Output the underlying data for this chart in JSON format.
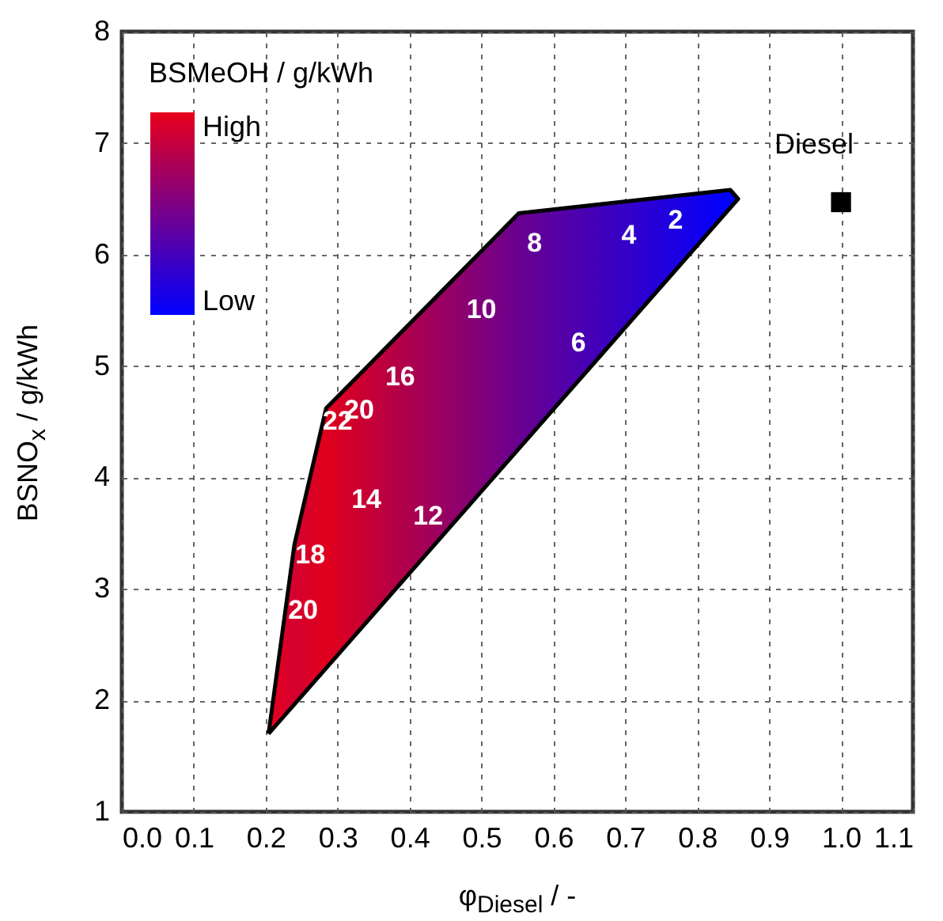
{
  "chart_data": {
    "type": "scatter",
    "xlabel": "φ$_{Diesel}$ / -",
    "ylabel": "BSNO$_{x}$ / g/kWh",
    "clabel": "BSMeOH / g/kWh",
    "xlim": [
      0,
      1.1
    ],
    "ylim": [
      1,
      8
    ],
    "xticks": [
      {
        "value": 0,
        "label": "0.0"
      },
      0.1,
      0.2,
      0.3,
      0.4,
      0.5,
      0.6,
      0.7,
      0.8,
      0.9,
      {
        "value": 1,
        "label": "1.0"
      },
      1.1
    ],
    "yticks": [
      1,
      2,
      3,
      4,
      5,
      6,
      7,
      8
    ],
    "grid": true,
    "series": [
      {
        "type": "area",
        "x": [
          0.204,
          0.24,
          0.284,
          0.552,
          0.846,
          0.857,
          0.204
        ],
        "values": [
          1.7,
          3.4,
          4.62,
          6.37,
          6.58,
          6.5,
          1.7
        ],
        "colors": [
          "#e8001c",
          "#d40030",
          "#e0001c",
          "#6a0090",
          "#0000ff",
          "#0000ff",
          "#e8001c"
        ]
      },
      {
        "name": "Diesel",
        "x": [
          1.0
        ],
        "values": [
          6.47
        ],
        "color": "#000000",
        "marker": "square"
      }
    ],
    "annotations": [
      "2",
      "4",
      "8",
      "10",
      "6",
      "16",
      "20",
      "22",
      "14",
      "12",
      "18",
      "20",
      "High",
      "Low"
    ]
  }
}
